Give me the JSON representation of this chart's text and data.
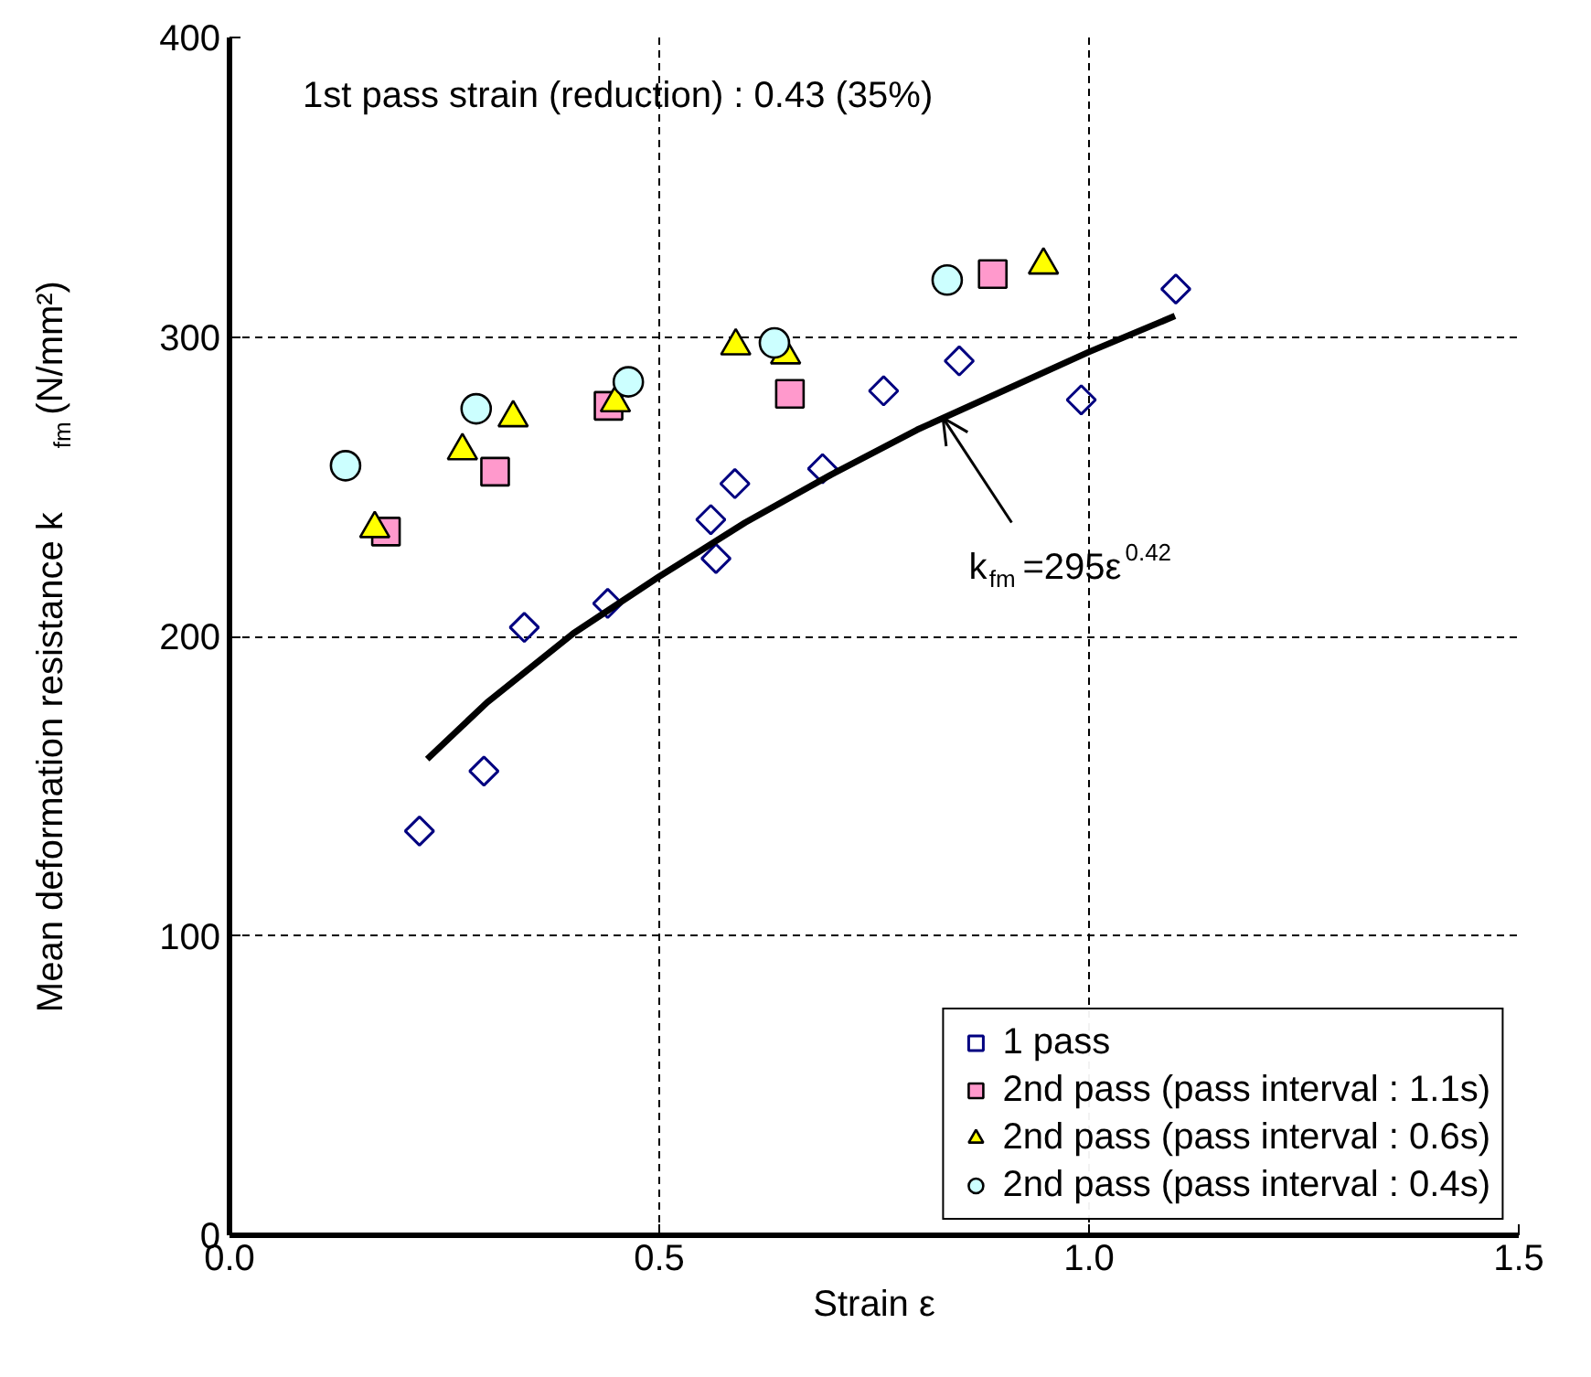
{
  "chart_data": {
    "type": "scatter",
    "xlabel": "Strain ε",
    "ylabel": "Mean deformation resistance k$_{fm}$ (N/mm²)",
    "xlim": [
      0,
      1.5
    ],
    "ylim": [
      0,
      400
    ],
    "xticks": [
      {
        "value": 0,
        "label": "0.0"
      },
      {
        "value": 0.5,
        "label": "0.5"
      },
      {
        "value": 1.0,
        "label": "1.0"
      },
      {
        "value": 1.5,
        "label": "1.5"
      }
    ],
    "yticks": [
      0,
      100,
      200,
      300,
      400
    ],
    "grid": true,
    "legend": "bottom right",
    "annotations": [
      "1st pass strain (reduction) : 0.43 (35%)",
      {
        "text": "k$_{fm}$=295ε$^{0.42}$",
        "x": 0.83,
        "y": 273
      }
    ],
    "series": [
      {
        "name": "1 pass",
        "color": "#000080",
        "marker": "diamond",
        "x": [
          0.221,
          0.296,
          0.343,
          0.44,
          0.56,
          0.566,
          0.588,
          0.69,
          0.761,
          0.849,
          0.991,
          1.101
        ],
        "values": [
          135,
          155,
          203,
          211,
          239,
          226,
          251,
          256,
          282,
          292,
          279,
          316
        ]
      },
      {
        "name": "2nd pass (pass interval : 1.1s)",
        "color": "#ff99cc",
        "marker": "square",
        "x": [
          0.182,
          0.309,
          0.441,
          0.652,
          0.888
        ],
        "values": [
          235,
          255,
          277,
          281,
          321
        ]
      },
      {
        "name": "2nd pass (pass interval : 0.6s)",
        "color": "#ffff00",
        "marker": "triangle",
        "x": [
          0.169,
          0.271,
          0.33,
          0.449,
          0.589,
          0.647,
          0.947
        ],
        "values": [
          236,
          262,
          273,
          278,
          297,
          294,
          324
        ]
      },
      {
        "name": "2nd pass (pass interval : 0.4s)",
        "color": "#ccffff",
        "marker": "circle",
        "x": [
          0.135,
          0.287,
          0.464,
          0.634,
          0.835
        ],
        "values": [
          257,
          276,
          285,
          298,
          319
        ]
      },
      {
        "type": "line",
        "color": "#000000",
        "marker": "none",
        "x": [
          0.23,
          0.3,
          0.4,
          0.5,
          0.6,
          0.7,
          0.8,
          0.9,
          1.0,
          1.1
        ],
        "values": [
          159,
          178,
          201,
          220,
          238,
          254,
          269,
          282,
          295,
          307
        ]
      }
    ]
  }
}
